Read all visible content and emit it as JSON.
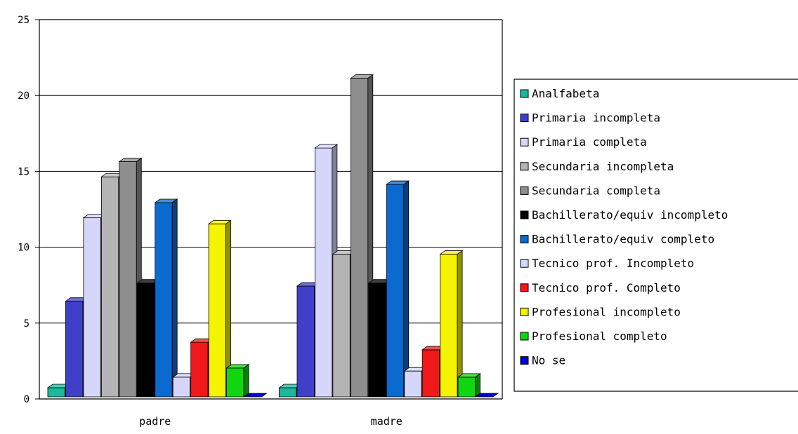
{
  "chart_data": {
    "type": "bar",
    "categories": [
      "padre",
      "madre"
    ],
    "series": [
      {
        "name": "Analfabeta",
        "color": "#1ab99c",
        "values": [
          0.6,
          0.6
        ]
      },
      {
        "name": "Primaria incompleta",
        "color": "#3f3fc8",
        "values": [
          6.3,
          7.3
        ]
      },
      {
        "name": "Primaria completa",
        "color": "#d6d6fa",
        "values": [
          11.8,
          16.4
        ]
      },
      {
        "name": "Secundaria incompleta",
        "color": "#b4b4b4",
        "values": [
          14.5,
          9.4
        ]
      },
      {
        "name": "Secundaria completa",
        "color": "#8e8e8e",
        "values": [
          15.5,
          21.0
        ]
      },
      {
        "name": "Bachillerato/equiv incompleto",
        "color": "#000000",
        "values": [
          7.5,
          7.5
        ]
      },
      {
        "name": "Bachillerato/equiv completo",
        "color": "#0a6ad0",
        "values": [
          12.8,
          14.0
        ]
      },
      {
        "name": "Tecnico prof. Incompleto",
        "color": "#d6d6fa",
        "values": [
          1.3,
          1.7
        ]
      },
      {
        "name": "Tecnico prof. Completo",
        "color": "#f01818",
        "values": [
          3.6,
          3.1
        ]
      },
      {
        "name": "Profesional incompleto",
        "color": "#f4f400",
        "values": [
          11.4,
          9.4
        ]
      },
      {
        "name": "Profesional completo",
        "color": "#10d610",
        "values": [
          1.9,
          1.3
        ]
      },
      {
        "name": "No se",
        "color": "#0000e0",
        "values": [
          0,
          0
        ]
      }
    ],
    "ylim": [
      0,
      25
    ],
    "yticks": [
      "0",
      "5",
      "10",
      "15",
      "20",
      "25"
    ],
    "grid": true,
    "legend_position": "right",
    "title": "",
    "xlabel": "",
    "ylabel": ""
  }
}
